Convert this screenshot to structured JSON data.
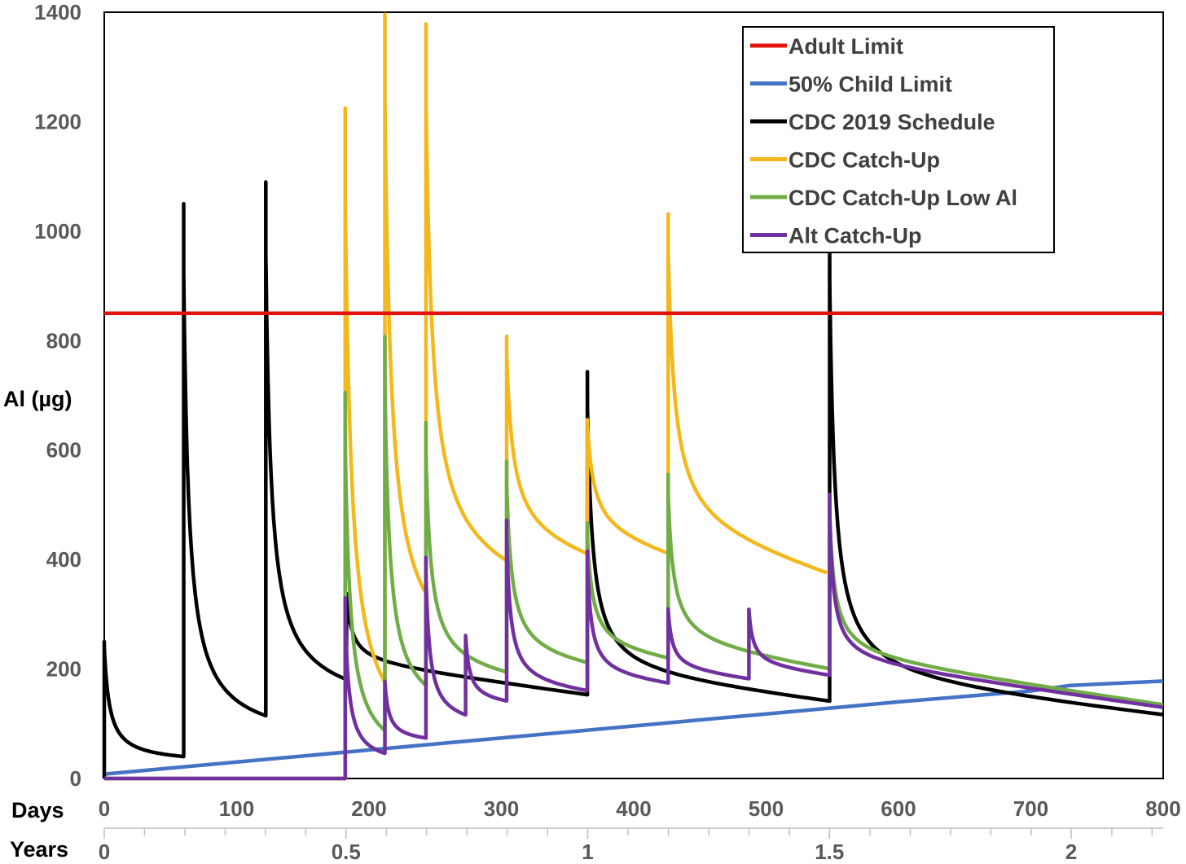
{
  "chart_data": {
    "type": "line",
    "ylabel": "Al (µg)",
    "ylim": [
      0,
      1400
    ],
    "yticks": [
      "0",
      "200",
      "400",
      "600",
      "800",
      "1000",
      "1200",
      "1400"
    ],
    "x_days": {
      "label": "Days",
      "range": [
        0,
        800
      ],
      "ticks": [
        "0",
        "100",
        "200",
        "300",
        "400",
        "500",
        "600",
        "700",
        "800"
      ]
    },
    "x_years": {
      "label": "Years",
      "range_years": [
        0,
        2.19
      ],
      "ticks": [
        {
          "value": 0,
          "label": "0"
        },
        {
          "value": 0.5,
          "label": "0.5"
        },
        {
          "value": 1,
          "label": "1"
        },
        {
          "value": 1.5,
          "label": "1.5"
        },
        {
          "value": 2,
          "label": "2"
        }
      ],
      "minor_tick_days": [
        30.4,
        60.9,
        91.3,
        121.8,
        152.2,
        213.1,
        243.5,
        274,
        304.4,
        334.9,
        395.8,
        426.2,
        456.7,
        487.1,
        517.6,
        578.5,
        608.9,
        639.4,
        669.8,
        700.3,
        761.2,
        791.6
      ]
    },
    "legend_position": "top-right",
    "series": [
      {
        "name": "Adult Limit",
        "color": "#e3120b",
        "kind": "constant",
        "value": 850
      },
      {
        "name": "50% Child Limit",
        "color": "#4472c4",
        "kind": "polyline",
        "points": [
          [
            0,
            8
          ],
          [
            100,
            30
          ],
          [
            200,
            52
          ],
          [
            300,
            74
          ],
          [
            400,
            96
          ],
          [
            500,
            118
          ],
          [
            600,
            140
          ],
          [
            700,
            160
          ],
          [
            730,
            170
          ],
          [
            800,
            178
          ]
        ]
      },
      {
        "name": "CDC 2019 Schedule",
        "color": "#000000",
        "kind": "doses",
        "baseline": 0,
        "doses": [
          [
            0,
            250
          ],
          [
            60,
            1010
          ],
          [
            122,
            975
          ],
          [
            183,
            153
          ],
          [
            365,
            590
          ],
          [
            548,
            880
          ]
        ],
        "end": 800,
        "floor": 40,
        "tau": 4
      },
      {
        "name": "CDC Catch-Up",
        "color": "#f4b81c",
        "kind": "doses",
        "baseline": 0,
        "start": 182,
        "doses": [
          [
            182,
            1225
          ],
          [
            212,
            1220
          ],
          [
            243,
            1040
          ],
          [
            304,
            410
          ],
          [
            365,
            245
          ],
          [
            426,
            620
          ]
        ],
        "end": 546,
        "floor": 40,
        "tau": 5
      },
      {
        "name": "CDC Catch-Up Low Al",
        "color": "#70ad47",
        "kind": "doses",
        "baseline": 0,
        "start": 182,
        "doses": [
          [
            182,
            705
          ],
          [
            212,
            720
          ],
          [
            243,
            480
          ],
          [
            304,
            385
          ],
          [
            365,
            255
          ],
          [
            426,
            335
          ],
          [
            548,
            310
          ]
        ],
        "end": 800,
        "floor": 25,
        "tau": 4
      },
      {
        "name": "Alt Catch-Up",
        "color": "#7030a0",
        "kind": "doses",
        "baseline": 0,
        "start": 182,
        "doses": [
          [
            182,
            330
          ],
          [
            212,
            130
          ],
          [
            243,
            330
          ],
          [
            273,
            145
          ],
          [
            304,
            330
          ],
          [
            365,
            255
          ],
          [
            426,
            135
          ],
          [
            487,
            125
          ],
          [
            548,
            330
          ]
        ],
        "end": 800,
        "floor": 30,
        "tau": 3
      }
    ]
  }
}
